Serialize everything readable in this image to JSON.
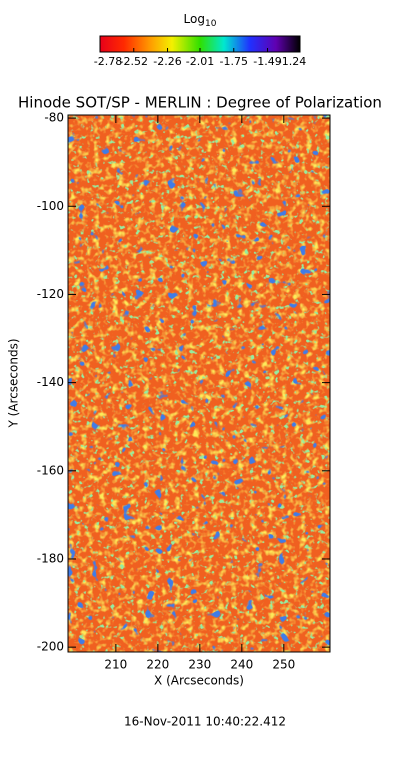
{
  "chart_data": {
    "type": "heatmap",
    "title": "Hinode SOT/SP - MERLIN : Degree of Polarization",
    "colorbar": {
      "label": "Log",
      "label_subscript": "10",
      "ticks": [
        -2.78,
        -2.52,
        -2.26,
        -2.01,
        -1.75,
        -1.49,
        -1.24
      ],
      "lim": [
        -2.78,
        -1.24
      ]
    },
    "x_label": "X (Arcseconds)",
    "y_label": "Y (Arcseconds)",
    "xlim": [
      198.6,
      261
    ],
    "xticks": [
      210,
      220,
      230,
      240,
      250
    ],
    "ylim": [
      -201.1,
      -79.3
    ],
    "yticks": [
      -80,
      -100,
      -120,
      -140,
      -160,
      -180,
      -200
    ],
    "footer": "16-Nov-2011 10:40:22.412"
  }
}
